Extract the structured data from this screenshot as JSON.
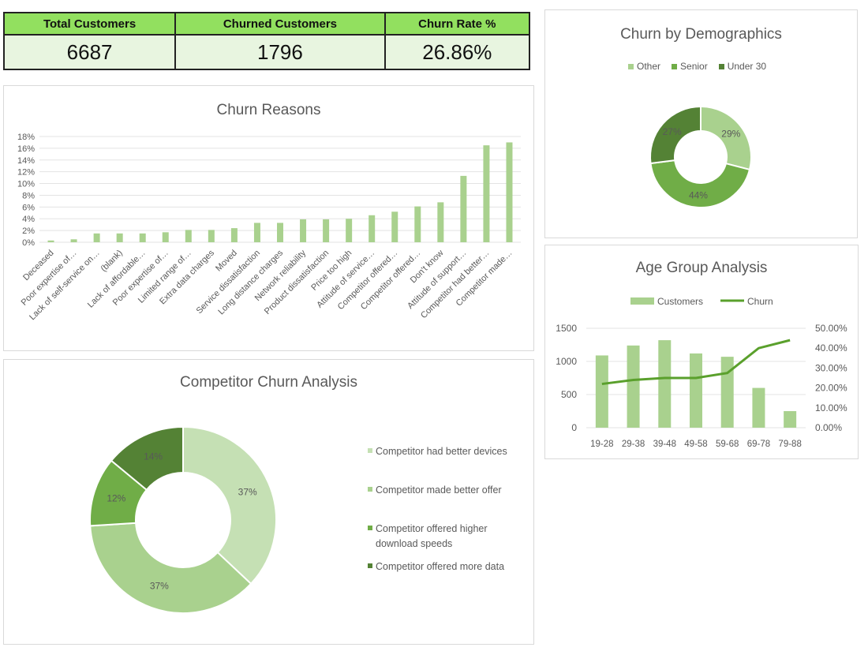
{
  "kpis": [
    {
      "label": "Total Customers",
      "value": "6687"
    },
    {
      "label": "Churned Customers",
      "value": "1796"
    },
    {
      "label": "Churn Rate %",
      "value": "26.86%"
    }
  ],
  "colors": {
    "light": "#c5e0b4",
    "mid_light": "#a9d18e",
    "mid": "#70ad47",
    "dark": "#548235",
    "bar": "#a9d18e",
    "line": "#5aa02c"
  },
  "chart_data": [
    {
      "type": "bar",
      "title": "Churn Reasons",
      "ylim": [
        0,
        18
      ],
      "yticks": [
        "0%",
        "2%",
        "4%",
        "6%",
        "8%",
        "10%",
        "12%",
        "14%",
        "16%",
        "18%"
      ],
      "grid": true,
      "categories": [
        "Deceased",
        "Poor expertise of…",
        "Lack of self-service on…",
        "(blank)",
        "Lack of affordable…",
        "Poor expertise of…",
        "Limited range of…",
        "Extra data charges",
        "Moved",
        "Service dissatisfaction",
        "Long distance charges",
        "Network reliability",
        "Product dissatisfaction",
        "Price too high",
        "Attitude of service…",
        "Competitor offered…",
        "Competitor offered…",
        "Don't know",
        "Attitude of support…",
        "Competitor had better…",
        "Competitor made…"
      ],
      "values": [
        0.3,
        0.5,
        1.5,
        1.5,
        1.5,
        1.7,
        2.1,
        2.1,
        2.4,
        3.3,
        3.3,
        3.9,
        3.9,
        4.0,
        4.6,
        5.2,
        6.1,
        6.8,
        11.3,
        16.5,
        17.0
      ]
    },
    {
      "type": "pie",
      "title": "Churn by Demographics",
      "donut": true,
      "legend_position": "top",
      "categories": [
        "Other",
        "Senior",
        "Under 30"
      ],
      "values": [
        29,
        44,
        27
      ],
      "labels": [
        "29%",
        "44%",
        "27%"
      ]
    },
    {
      "type": "bar",
      "title": "Age Group Analysis",
      "legend_position": "top",
      "grid": true,
      "categories": [
        "19-28",
        "29-38",
        "39-48",
        "49-58",
        "59-68",
        "69-78",
        "79-88"
      ],
      "series": [
        {
          "name": "Customers",
          "type": "bar",
          "values": [
            1090,
            1240,
            1320,
            1120,
            1070,
            600,
            250
          ]
        },
        {
          "name": "Churn",
          "type": "line",
          "axis": "secondary",
          "values": [
            22,
            24,
            25,
            25,
            27.5,
            40,
            44
          ]
        }
      ],
      "ylim": [
        0,
        1500
      ],
      "yticks": [
        "0",
        "500",
        "1000",
        "1500"
      ],
      "y2lim": [
        0,
        50
      ],
      "y2ticks": [
        "0.00%",
        "10.00%",
        "20.00%",
        "30.00%",
        "40.00%",
        "50.00%"
      ]
    },
    {
      "type": "pie",
      "title": "Competitor Churn Analysis",
      "donut": true,
      "legend_position": "right",
      "categories": [
        "Competitor had better devices",
        "Competitor made better offer",
        "Competitor offered higher download speeds",
        "Competitor offered more data"
      ],
      "values": [
        37,
        37,
        12,
        14
      ],
      "labels": [
        "37%",
        "37%",
        "12%",
        "14%"
      ]
    }
  ]
}
